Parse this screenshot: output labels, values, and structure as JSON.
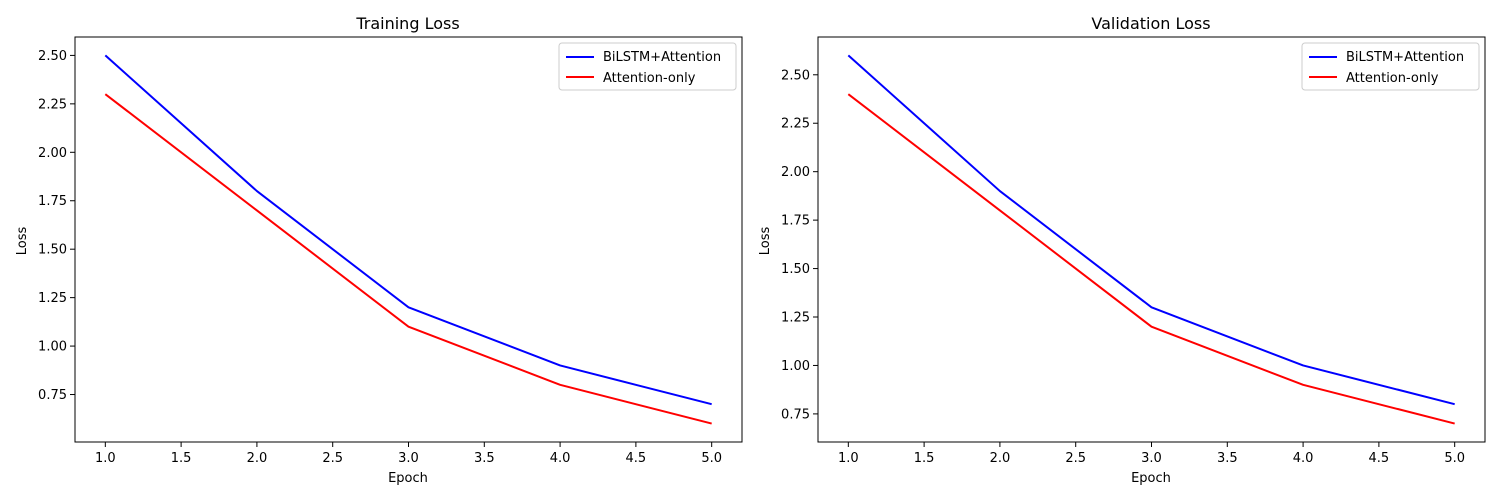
{
  "chart_data": [
    {
      "type": "line",
      "title": "Training Loss",
      "xlabel": "Epoch",
      "ylabel": "Loss",
      "x": [
        1,
        2,
        3,
        4,
        5
      ],
      "xlim": [
        0.8,
        5.2
      ],
      "ylim": [
        0.505,
        2.595
      ],
      "xticks": [
        1.0,
        1.5,
        2.0,
        2.5,
        3.0,
        3.5,
        4.0,
        4.5,
        5.0
      ],
      "xtick_labels": [
        "1.0",
        "1.5",
        "2.0",
        "2.5",
        "3.0",
        "3.5",
        "4.0",
        "4.5",
        "5.0"
      ],
      "yticks": [
        0.75,
        1.0,
        1.25,
        1.5,
        1.75,
        2.0,
        2.25,
        2.5
      ],
      "ytick_labels": [
        "0.75",
        "1.00",
        "1.25",
        "1.50",
        "1.75",
        "2.00",
        "2.25",
        "2.50"
      ],
      "grid": false,
      "legend_position": "top-right",
      "series": [
        {
          "name": "BiLSTM+Attention",
          "color": "#0000ff",
          "values": [
            2.5,
            1.8,
            1.2,
            0.9,
            0.7
          ]
        },
        {
          "name": "Attention-only",
          "color": "#ff0000",
          "values": [
            2.3,
            1.7,
            1.1,
            0.8,
            0.6
          ]
        }
      ]
    },
    {
      "type": "line",
      "title": "Validation Loss",
      "xlabel": "Epoch",
      "ylabel": "Loss",
      "x": [
        1,
        2,
        3,
        4,
        5
      ],
      "xlim": [
        0.8,
        5.2
      ],
      "ylim": [
        0.605,
        2.695
      ],
      "xticks": [
        1.0,
        1.5,
        2.0,
        2.5,
        3.0,
        3.5,
        4.0,
        4.5,
        5.0
      ],
      "xtick_labels": [
        "1.0",
        "1.5",
        "2.0",
        "2.5",
        "3.0",
        "3.5",
        "4.0",
        "4.5",
        "5.0"
      ],
      "yticks": [
        0.75,
        1.0,
        1.25,
        1.5,
        1.75,
        2.0,
        2.25,
        2.5
      ],
      "ytick_labels": [
        "0.75",
        "1.00",
        "1.25",
        "1.50",
        "1.75",
        "2.00",
        "2.25",
        "2.50"
      ],
      "grid": false,
      "legend_position": "top-right",
      "series": [
        {
          "name": "BiLSTM+Attention",
          "color": "#0000ff",
          "values": [
            2.6,
            1.9,
            1.3,
            1.0,
            0.8
          ]
        },
        {
          "name": "Attention-only",
          "color": "#ff0000",
          "values": [
            2.4,
            1.8,
            1.2,
            0.9,
            0.7
          ]
        }
      ]
    }
  ]
}
